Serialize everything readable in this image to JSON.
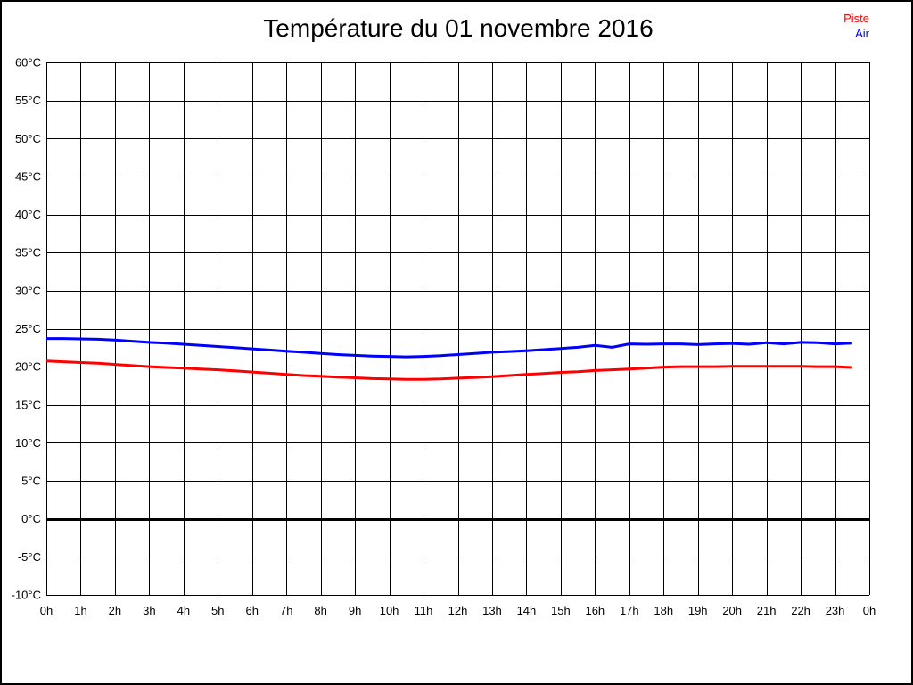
{
  "header": {
    "title": "Température du 01 novembre 2016"
  },
  "legend": {
    "position": "top-right",
    "items": [
      {
        "label": "Piste",
        "color": "#ff0000"
      },
      {
        "label": "Air",
        "color": "#0000ff"
      }
    ]
  },
  "chart_data": {
    "type": "line",
    "title": "Température du 01 novembre 2016",
    "xlabel": "",
    "ylabel": "",
    "xlim": [
      0,
      24
    ],
    "ylim": [
      -10,
      60
    ],
    "grid": "on",
    "grid_color": "#000000",
    "zero_line": {
      "value": 0,
      "color": "#000000",
      "width": 3
    },
    "y_ticks": [
      {
        "value": 60,
        "label": "60°C"
      },
      {
        "value": 55,
        "label": "55°C"
      },
      {
        "value": 50,
        "label": "50°C"
      },
      {
        "value": 45,
        "label": "45°C"
      },
      {
        "value": 40,
        "label": "40°C"
      },
      {
        "value": 35,
        "label": "35°C"
      },
      {
        "value": 30,
        "label": "30°C"
      },
      {
        "value": 25,
        "label": "25°C"
      },
      {
        "value": 20,
        "label": "20°C"
      },
      {
        "value": 15,
        "label": "15°C"
      },
      {
        "value": 10,
        "label": "10°C"
      },
      {
        "value": 5,
        "label": "5°C"
      },
      {
        "value": 0,
        "label": "0°C"
      },
      {
        "value": -5,
        "label": "-5°C"
      },
      {
        "value": -10,
        "label": "-10°C"
      }
    ],
    "x_ticks": [
      {
        "hour": 0,
        "label": "0h"
      },
      {
        "hour": 1,
        "label": "1h"
      },
      {
        "hour": 2,
        "label": "2h"
      },
      {
        "hour": 3,
        "label": "3h"
      },
      {
        "hour": 4,
        "label": "4h"
      },
      {
        "hour": 5,
        "label": "5h"
      },
      {
        "hour": 6,
        "label": "6h"
      },
      {
        "hour": 7,
        "label": "7h"
      },
      {
        "hour": 8,
        "label": "8h"
      },
      {
        "hour": 9,
        "label": "9h"
      },
      {
        "hour": 10,
        "label": "10h"
      },
      {
        "hour": 11,
        "label": "11h"
      },
      {
        "hour": 12,
        "label": "12h"
      },
      {
        "hour": 13,
        "label": "13h"
      },
      {
        "hour": 14,
        "label": "14h"
      },
      {
        "hour": 15,
        "label": "15h"
      },
      {
        "hour": 16,
        "label": "16h"
      },
      {
        "hour": 17,
        "label": "17h"
      },
      {
        "hour": 18,
        "label": "18h"
      },
      {
        "hour": 19,
        "label": "19h"
      },
      {
        "hour": 20,
        "label": "20h"
      },
      {
        "hour": 21,
        "label": "21h"
      },
      {
        "hour": 22,
        "label": "22h"
      },
      {
        "hour": 23,
        "label": "23h"
      },
      {
        "hour": 24,
        "label": "0h"
      }
    ],
    "x_hours": [
      0,
      0.5,
      1,
      1.5,
      2,
      2.5,
      3,
      3.5,
      4,
      4.5,
      5,
      5.5,
      6,
      6.5,
      7,
      7.5,
      8,
      8.5,
      9,
      9.5,
      10,
      10.5,
      11,
      11.5,
      12,
      12.5,
      13,
      13.5,
      14,
      14.5,
      15,
      15.5,
      16,
      16.5,
      17,
      17.5,
      18,
      18.5,
      19,
      19.5,
      20,
      20.5,
      21,
      21.5,
      22,
      22.5,
      23,
      23.5
    ],
    "series": [
      {
        "name": "Piste",
        "color": "#ff0000",
        "line_width": 3,
        "values": [
          20.75,
          20.65,
          20.55,
          20.45,
          20.3,
          20.15,
          20.0,
          19.9,
          19.8,
          19.7,
          19.6,
          19.45,
          19.3,
          19.15,
          19.0,
          18.85,
          18.75,
          18.65,
          18.55,
          18.45,
          18.4,
          18.35,
          18.35,
          18.4,
          18.5,
          18.6,
          18.7,
          18.85,
          19.0,
          19.1,
          19.25,
          19.35,
          19.5,
          19.6,
          19.7,
          19.8,
          19.95,
          20.0,
          20.0,
          20.0,
          20.05,
          20.05,
          20.05,
          20.05,
          20.05,
          20.0,
          20.0,
          19.9
        ]
      },
      {
        "name": "Air",
        "color": "#0000ff",
        "line_width": 3,
        "values": [
          23.7,
          23.7,
          23.65,
          23.6,
          23.5,
          23.35,
          23.2,
          23.1,
          22.95,
          22.8,
          22.65,
          22.5,
          22.35,
          22.2,
          22.05,
          21.9,
          21.75,
          21.6,
          21.5,
          21.4,
          21.35,
          21.3,
          21.35,
          21.45,
          21.6,
          21.75,
          21.9,
          22.0,
          22.1,
          22.25,
          22.4,
          22.55,
          22.8,
          22.55,
          23.0,
          22.95,
          23.0,
          23.0,
          22.9,
          23.0,
          23.05,
          22.95,
          23.15,
          23.0,
          23.2,
          23.15,
          23.0,
          23.1
        ]
      }
    ],
    "legend_position": "top-right"
  }
}
